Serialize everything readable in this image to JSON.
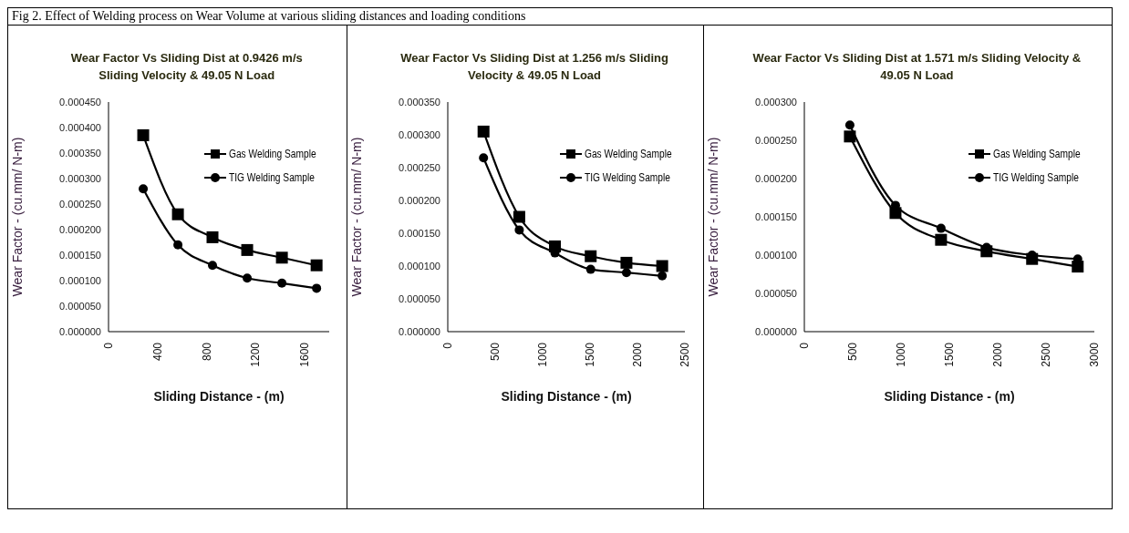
{
  "chart_data": [
    {
      "type": "line",
      "title": "Wear Factor Vs Sliding Dist at 0.9426 m/s Sliding Velocity & 49.05 N Load",
      "xlabel": "Sliding Distance - (m)",
      "ylabel": "Wear Factor -  (cu.mm/ N-m)",
      "annotations": [
        "Fig 2. Effect of Welding process on Wear Volume at various sliding distances and loading conditions"
      ],
      "x": [
        283,
        566,
        848,
        1131,
        1414,
        1697
      ],
      "series": [
        {
          "name": "Gas Welding Sample",
          "color": "#000000",
          "marker": "square",
          "values": [
            0.000385,
            0.00023,
            0.000185,
            0.00016,
            0.000145,
            0.00013
          ]
        },
        {
          "name": "TIG Welding Sample",
          "color": "#000000",
          "marker": "circle",
          "values": [
            0.00028,
            0.00017,
            0.00013,
            0.000105,
            9.5e-05,
            8.5e-05
          ]
        }
      ],
      "xlim": [
        0,
        1800
      ],
      "xticks": [
        0,
        400,
        800,
        1200,
        1600
      ],
      "ylim": [
        0,
        0.00045
      ],
      "yticks": [
        {
          "value": 0,
          "label": "0.000000"
        },
        {
          "value": 5e-05,
          "label": "0.000050"
        },
        {
          "value": 0.0001,
          "label": "0.000100"
        },
        {
          "value": 0.00015,
          "label": "0.000150"
        },
        {
          "value": 0.0002,
          "label": "0.000200"
        },
        {
          "value": 0.00025,
          "label": "0.000250"
        },
        {
          "value": 0.0003,
          "label": "0.000300"
        },
        {
          "value": 0.00035,
          "label": "0.000350"
        },
        {
          "value": 0.0004,
          "label": "0.000400"
        },
        {
          "value": 0.00045,
          "label": "0.000450"
        }
      ],
      "grid": false,
      "legend": "top right",
      "line_style": "solid"
    },
    {
      "type": "line",
      "title": "Wear Factor Vs Sliding Dist at 1.256 m/s Sliding Velocity & 49.05 N Load",
      "xlabel": "Sliding Distance - (m)",
      "ylabel": "Wear Factor -  (cu.mm/ N-m)",
      "x": [
        377,
        754,
        1130,
        1507,
        1884,
        2261
      ],
      "series": [
        {
          "name": "Gas Welding Sample",
          "color": "#000000",
          "marker": "square",
          "values": [
            0.000305,
            0.000175,
            0.00013,
            0.000115,
            0.000105,
            0.0001
          ]
        },
        {
          "name": "TIG Welding Sample",
          "color": "#000000",
          "marker": "circle",
          "values": [
            0.000265,
            0.000155,
            0.00012,
            9.5e-05,
            9e-05,
            8.5e-05
          ]
        }
      ],
      "xlim": [
        0,
        2500
      ],
      "xticks": [
        0,
        500,
        1000,
        1500,
        2000,
        2500
      ],
      "ylim": [
        0,
        0.00035
      ],
      "yticks": [
        {
          "value": 0,
          "label": "0.000000"
        },
        {
          "value": 5e-05,
          "label": "0.000050"
        },
        {
          "value": 0.0001,
          "label": "0.000100"
        },
        {
          "value": 0.00015,
          "label": "0.000150"
        },
        {
          "value": 0.0002,
          "label": "0.000200"
        },
        {
          "value": 0.00025,
          "label": "0.000250"
        },
        {
          "value": 0.0003,
          "label": "0.000300"
        },
        {
          "value": 0.00035,
          "label": "0.000350"
        }
      ],
      "grid": false,
      "legend": "top right",
      "line_style": "solid"
    },
    {
      "type": "line",
      "title": "Wear Factor Vs Sliding Dist at 1.571 m/s Sliding Velocity & 49.05 N Load",
      "xlabel": "Sliding Distance - (m)",
      "ylabel": "Wear Factor -  (cu.mm/ N-m)",
      "x": [
        471,
        943,
        1414,
        1885,
        2356,
        2828
      ],
      "series": [
        {
          "name": "Gas Welding Sample",
          "color": "#000000",
          "marker": "square",
          "values": [
            0.000255,
            0.000155,
            0.00012,
            0.000105,
            9.5e-05,
            8.5e-05
          ]
        },
        {
          "name": "TIG Welding Sample",
          "color": "#000000",
          "marker": "circle",
          "values": [
            0.00027,
            0.000165,
            0.000135,
            0.00011,
            0.0001,
            9.5e-05
          ]
        }
      ],
      "xlim": [
        0,
        3000
      ],
      "xticks": [
        0,
        500,
        1000,
        1500,
        2000,
        2500,
        3000
      ],
      "ylim": [
        0,
        0.0003
      ],
      "yticks": [
        {
          "value": 0,
          "label": "0.000000"
        },
        {
          "value": 5e-05,
          "label": "0.000050"
        },
        {
          "value": 0.0001,
          "label": "0.000100"
        },
        {
          "value": 0.00015,
          "label": "0.000150"
        },
        {
          "value": 0.0002,
          "label": "0.000200"
        },
        {
          "value": 0.00025,
          "label": "0.000250"
        },
        {
          "value": 0.0003,
          "label": "0.000300"
        }
      ],
      "grid": false,
      "legend": "top right",
      "line_style": "solid"
    }
  ]
}
